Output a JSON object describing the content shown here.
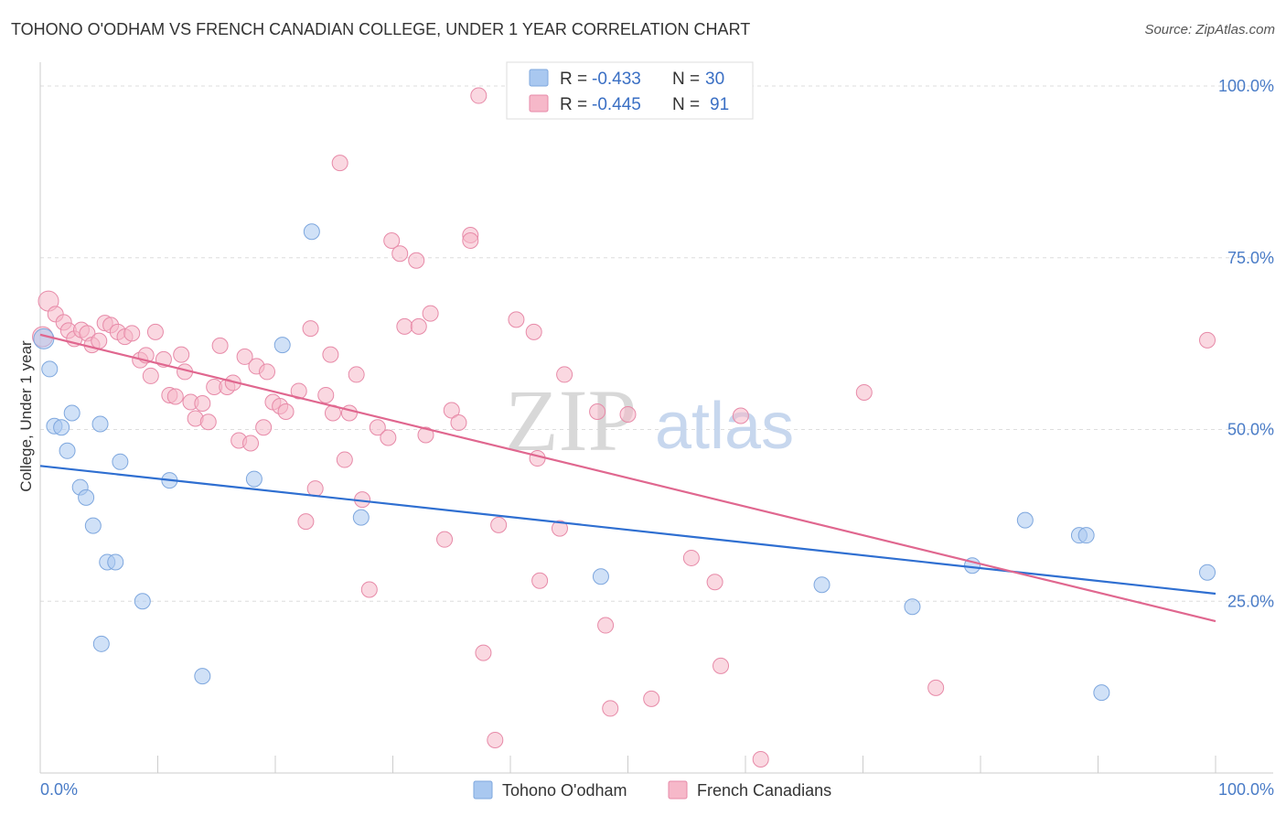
{
  "title": "TOHONO O'ODHAM VS FRENCH CANADIAN COLLEGE, UNDER 1 YEAR CORRELATION CHART",
  "source": "Source: ZipAtlas.com",
  "watermark": {
    "zip": "ZIP",
    "atlas": "atlas"
  },
  "legend": {
    "rows": [
      {
        "r_label": "R =",
        "r_value": "-0.433",
        "n_label": "N =",
        "n_value": "30",
        "color": "#a9c8f0"
      },
      {
        "r_label": "R =",
        "r_value": "-0.445",
        "n_label": "N =",
        "n_value": "91",
        "color": "#f6b8c9"
      }
    ]
  },
  "bottom_legend": [
    {
      "label": "Tohono O'odham",
      "color": "#a9c8f0"
    },
    {
      "label": "French Canadians",
      "color": "#f6b8c9"
    }
  ],
  "colors": {
    "blue_fill": "#a9c8f0",
    "blue_line": "#2f6fd1",
    "pink_fill": "#f6b8c9",
    "pink_line": "#e0678f",
    "grid": "#dddddd",
    "tick_text": "#4a7cc7"
  },
  "chart_data": {
    "type": "scatter",
    "xlabel": "",
    "ylabel": "College, Under 1 year",
    "xlim": [
      0,
      100
    ],
    "ylim": [
      0,
      102
    ],
    "x_tick_labels": [
      "0.0%",
      "100.0%"
    ],
    "y_ticks": [
      25,
      50,
      75,
      100
    ],
    "y_tick_labels": [
      "25.0%",
      "50.0%",
      "75.0%",
      "100.0%"
    ],
    "grid": true,
    "series": [
      {
        "name": "Tohono O'odham",
        "color": "#a9c8f0",
        "trend": {
          "x": [
            0,
            100
          ],
          "y": [
            44.7,
            26.1
          ]
        },
        "points": [
          {
            "x": 0.3,
            "y": 63.2
          },
          {
            "x": 0.8,
            "y": 58.8
          },
          {
            "x": 1.2,
            "y": 50.5
          },
          {
            "x": 1.8,
            "y": 50.3
          },
          {
            "x": 2.3,
            "y": 46.9
          },
          {
            "x": 2.7,
            "y": 52.4
          },
          {
            "x": 3.4,
            "y": 41.6
          },
          {
            "x": 3.9,
            "y": 40.1
          },
          {
            "x": 4.5,
            "y": 36.0
          },
          {
            "x": 5.1,
            "y": 50.8
          },
          {
            "x": 5.7,
            "y": 30.7
          },
          {
            "x": 6.4,
            "y": 30.7
          },
          {
            "x": 6.8,
            "y": 45.3
          },
          {
            "x": 5.2,
            "y": 18.8
          },
          {
            "x": 8.7,
            "y": 25.0
          },
          {
            "x": 11.0,
            "y": 42.6
          },
          {
            "x": 13.8,
            "y": 14.1
          },
          {
            "x": 18.2,
            "y": 42.8
          },
          {
            "x": 20.6,
            "y": 62.3
          },
          {
            "x": 23.1,
            "y": 78.8
          },
          {
            "x": 27.3,
            "y": 37.2
          },
          {
            "x": 47.7,
            "y": 28.6
          },
          {
            "x": 66.5,
            "y": 27.4
          },
          {
            "x": 74.2,
            "y": 24.2
          },
          {
            "x": 79.3,
            "y": 30.2
          },
          {
            "x": 83.8,
            "y": 36.8
          },
          {
            "x": 88.4,
            "y": 34.6
          },
          {
            "x": 89.0,
            "y": 34.6
          },
          {
            "x": 90.3,
            "y": 11.7
          },
          {
            "x": 99.3,
            "y": 29.2
          }
        ]
      },
      {
        "name": "French Canadians",
        "color": "#f6b8c9",
        "trend": {
          "x": [
            0,
            100
          ],
          "y": [
            63.8,
            22.1
          ]
        },
        "points": [
          {
            "x": 0.2,
            "y": 63.5
          },
          {
            "x": 0.7,
            "y": 68.7
          },
          {
            "x": 1.3,
            "y": 66.8
          },
          {
            "x": 2.0,
            "y": 65.6
          },
          {
            "x": 2.4,
            "y": 64.4
          },
          {
            "x": 2.9,
            "y": 63.2
          },
          {
            "x": 3.5,
            "y": 64.5
          },
          {
            "x": 4.0,
            "y": 64.0
          },
          {
            "x": 4.4,
            "y": 62.3
          },
          {
            "x": 5.0,
            "y": 62.9
          },
          {
            "x": 5.5,
            "y": 65.5
          },
          {
            "x": 6.0,
            "y": 65.2
          },
          {
            "x": 6.6,
            "y": 64.2
          },
          {
            "x": 7.2,
            "y": 63.5
          },
          {
            "x": 7.8,
            "y": 64.0
          },
          {
            "x": 8.5,
            "y": 60.1
          },
          {
            "x": 9.0,
            "y": 60.8
          },
          {
            "x": 9.4,
            "y": 57.8
          },
          {
            "x": 9.8,
            "y": 64.2
          },
          {
            "x": 10.5,
            "y": 60.2
          },
          {
            "x": 11.0,
            "y": 55.0
          },
          {
            "x": 11.5,
            "y": 54.8
          },
          {
            "x": 12.0,
            "y": 60.9
          },
          {
            "x": 12.3,
            "y": 58.4
          },
          {
            "x": 12.8,
            "y": 54.0
          },
          {
            "x": 13.2,
            "y": 51.6
          },
          {
            "x": 13.8,
            "y": 53.8
          },
          {
            "x": 14.3,
            "y": 51.1
          },
          {
            "x": 14.8,
            "y": 56.2
          },
          {
            "x": 15.3,
            "y": 62.2
          },
          {
            "x": 15.9,
            "y": 56.2
          },
          {
            "x": 16.4,
            "y": 56.8
          },
          {
            "x": 16.9,
            "y": 48.4
          },
          {
            "x": 17.4,
            "y": 60.6
          },
          {
            "x": 17.9,
            "y": 48.0
          },
          {
            "x": 18.4,
            "y": 59.2
          },
          {
            "x": 19.0,
            "y": 50.3
          },
          {
            "x": 19.3,
            "y": 58.4
          },
          {
            "x": 19.8,
            "y": 54.0
          },
          {
            "x": 20.4,
            "y": 53.4
          },
          {
            "x": 20.9,
            "y": 52.6
          },
          {
            "x": 22.0,
            "y": 55.6
          },
          {
            "x": 22.6,
            "y": 36.6
          },
          {
            "x": 23.0,
            "y": 64.7
          },
          {
            "x": 23.4,
            "y": 41.4
          },
          {
            "x": 24.3,
            "y": 55.0
          },
          {
            "x": 24.7,
            "y": 60.9
          },
          {
            "x": 24.9,
            "y": 52.4
          },
          {
            "x": 25.5,
            "y": 88.8
          },
          {
            "x": 25.9,
            "y": 45.6
          },
          {
            "x": 26.3,
            "y": 52.4
          },
          {
            "x": 26.9,
            "y": 58.0
          },
          {
            "x": 27.4,
            "y": 39.8
          },
          {
            "x": 28.0,
            "y": 26.7
          },
          {
            "x": 28.7,
            "y": 50.3
          },
          {
            "x": 29.6,
            "y": 48.8
          },
          {
            "x": 29.9,
            "y": 77.5
          },
          {
            "x": 30.6,
            "y": 75.6
          },
          {
            "x": 31.0,
            "y": 65.0
          },
          {
            "x": 32.0,
            "y": 74.6
          },
          {
            "x": 32.2,
            "y": 65.0
          },
          {
            "x": 32.8,
            "y": 49.2
          },
          {
            "x": 33.2,
            "y": 66.9
          },
          {
            "x": 34.4,
            "y": 34.0
          },
          {
            "x": 35.0,
            "y": 52.8
          },
          {
            "x": 35.6,
            "y": 51.0
          },
          {
            "x": 36.6,
            "y": 78.3
          },
          {
            "x": 36.6,
            "y": 77.5
          },
          {
            "x": 37.3,
            "y": 98.6
          },
          {
            "x": 37.7,
            "y": 17.5
          },
          {
            "x": 38.7,
            "y": 4.8
          },
          {
            "x": 39.0,
            "y": 36.1
          },
          {
            "x": 40.5,
            "y": 66.0
          },
          {
            "x": 42.0,
            "y": 64.2
          },
          {
            "x": 42.3,
            "y": 45.8
          },
          {
            "x": 42.5,
            "y": 28.0
          },
          {
            "x": 44.2,
            "y": 35.6
          },
          {
            "x": 44.6,
            "y": 58.0
          },
          {
            "x": 47.4,
            "y": 52.6
          },
          {
            "x": 48.1,
            "y": 21.5
          },
          {
            "x": 48.5,
            "y": 9.4
          },
          {
            "x": 50.0,
            "y": 52.2
          },
          {
            "x": 52.0,
            "y": 10.8
          },
          {
            "x": 55.4,
            "y": 31.3
          },
          {
            "x": 57.4,
            "y": 27.8
          },
          {
            "x": 57.9,
            "y": 15.6
          },
          {
            "x": 61.3,
            "y": 2.0
          },
          {
            "x": 70.1,
            "y": 55.4
          },
          {
            "x": 76.2,
            "y": 12.4
          },
          {
            "x": 99.3,
            "y": 63.0
          },
          {
            "x": 59.6,
            "y": 52.0
          }
        ]
      }
    ]
  }
}
